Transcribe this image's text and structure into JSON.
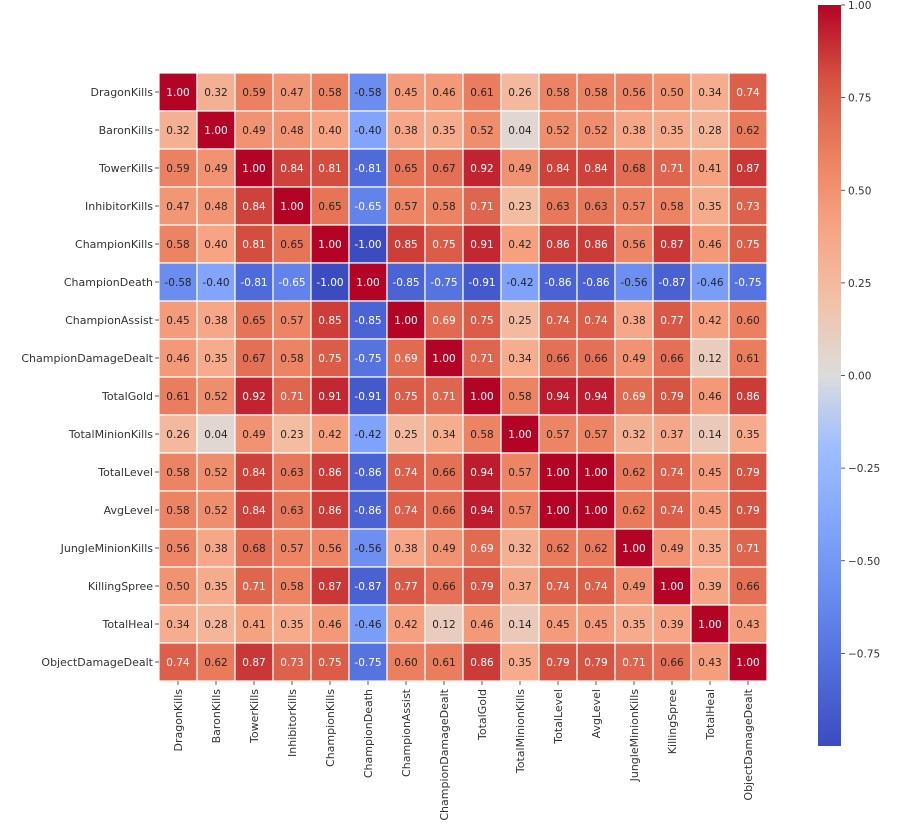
{
  "chart_data": {
    "type": "heatmap",
    "title": "",
    "labels": [
      "DragonKills",
      "BaronKills",
      "TowerKills",
      "InhibitorKills",
      "ChampionKills",
      "ChampionDeath",
      "ChampionAssist",
      "ChampionDamageDealt",
      "TotalGold",
      "TotalMinionKills",
      "TotalLevel",
      "AvgLevel",
      "JungleMinionKills",
      "KillingSpree",
      "TotalHeal",
      "ObjectDamageDealt"
    ],
    "matrix": [
      [
        1.0,
        0.32,
        0.59,
        0.47,
        0.58,
        -0.58,
        0.45,
        0.46,
        0.61,
        0.26,
        0.58,
        0.58,
        0.56,
        0.5,
        0.34,
        0.74
      ],
      [
        0.32,
        1.0,
        0.49,
        0.48,
        0.4,
        -0.4,
        0.38,
        0.35,
        0.52,
        0.04,
        0.52,
        0.52,
        0.38,
        0.35,
        0.28,
        0.62
      ],
      [
        0.59,
        0.49,
        1.0,
        0.84,
        0.81,
        -0.81,
        0.65,
        0.67,
        0.92,
        0.49,
        0.84,
        0.84,
        0.68,
        0.71,
        0.41,
        0.87
      ],
      [
        0.47,
        0.48,
        0.84,
        1.0,
        0.65,
        -0.65,
        0.57,
        0.58,
        0.71,
        0.23,
        0.63,
        0.63,
        0.57,
        0.58,
        0.35,
        0.73
      ],
      [
        0.58,
        0.4,
        0.81,
        0.65,
        1.0,
        -1.0,
        0.85,
        0.75,
        0.91,
        0.42,
        0.86,
        0.86,
        0.56,
        0.87,
        0.46,
        0.75
      ],
      [
        -0.58,
        -0.4,
        -0.81,
        -0.65,
        -1.0,
        1.0,
        -0.85,
        -0.75,
        -0.91,
        -0.42,
        -0.86,
        -0.86,
        -0.56,
        -0.87,
        -0.46,
        -0.75
      ],
      [
        0.45,
        0.38,
        0.65,
        0.57,
        0.85,
        -0.85,
        1.0,
        0.69,
        0.75,
        0.25,
        0.74,
        0.74,
        0.38,
        0.77,
        0.42,
        0.6
      ],
      [
        0.46,
        0.35,
        0.67,
        0.58,
        0.75,
        -0.75,
        0.69,
        1.0,
        0.71,
        0.34,
        0.66,
        0.66,
        0.49,
        0.66,
        0.12,
        0.61
      ],
      [
        0.61,
        0.52,
        0.92,
        0.71,
        0.91,
        -0.91,
        0.75,
        0.71,
        1.0,
        0.58,
        0.94,
        0.94,
        0.69,
        0.79,
        0.46,
        0.86
      ],
      [
        0.26,
        0.04,
        0.49,
        0.23,
        0.42,
        -0.42,
        0.25,
        0.34,
        0.58,
        1.0,
        0.57,
        0.57,
        0.32,
        0.37,
        0.14,
        0.35
      ],
      [
        0.58,
        0.52,
        0.84,
        0.63,
        0.86,
        -0.86,
        0.74,
        0.66,
        0.94,
        0.57,
        1.0,
        1.0,
        0.62,
        0.74,
        0.45,
        0.79
      ],
      [
        0.58,
        0.52,
        0.84,
        0.63,
        0.86,
        -0.86,
        0.74,
        0.66,
        0.94,
        0.57,
        1.0,
        1.0,
        0.62,
        0.74,
        0.45,
        0.79
      ],
      [
        0.56,
        0.38,
        0.68,
        0.57,
        0.56,
        -0.56,
        0.38,
        0.49,
        0.69,
        0.32,
        0.62,
        0.62,
        1.0,
        0.49,
        0.35,
        0.71
      ],
      [
        0.5,
        0.35,
        0.71,
        0.58,
        0.87,
        -0.87,
        0.77,
        0.66,
        0.79,
        0.37,
        0.74,
        0.74,
        0.49,
        1.0,
        0.39,
        0.66
      ],
      [
        0.34,
        0.28,
        0.41,
        0.35,
        0.46,
        -0.46,
        0.42,
        0.12,
        0.46,
        0.14,
        0.45,
        0.45,
        0.35,
        0.39,
        1.0,
        0.43
      ],
      [
        0.74,
        0.62,
        0.87,
        0.73,
        0.75,
        -0.75,
        0.6,
        0.61,
        0.86,
        0.35,
        0.79,
        0.79,
        0.71,
        0.66,
        0.43,
        1.0
      ]
    ],
    "value_format": "2 decimals",
    "colormap": "coolwarm",
    "vmin": -1.0,
    "vmax": 1.0,
    "colorbar_range": [
      -1.0,
      1.0
    ],
    "colorbar_ticks": [
      "1.00",
      "0.75",
      "0.50",
      "0.25",
      "0.00",
      "−0.25",
      "−0.50",
      "−0.75"
    ],
    "colorbar_tick_values": [
      1.0,
      0.75,
      0.5,
      0.25,
      0.0,
      -0.25,
      -0.5,
      -0.75
    ],
    "grid": false,
    "cell_border_color": "#ffffff"
  }
}
